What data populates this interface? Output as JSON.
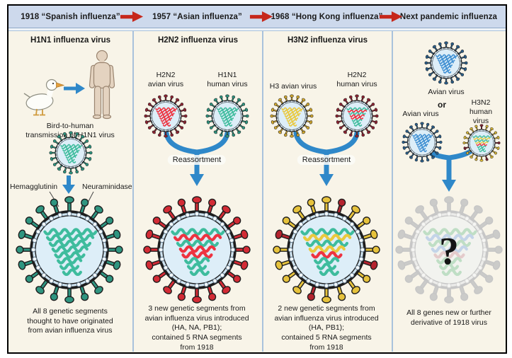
{
  "header": {
    "cells": [
      {
        "label": "1918 “Spanish influenza”"
      },
      {
        "label": "1957 “Asian influenza”"
      },
      {
        "label": "1968 “Hong Kong influenza”"
      },
      {
        "label": "Next pandemic influenza"
      }
    ],
    "arrow_color": "#c6271b"
  },
  "colors": {
    "header_bg": "#cdd9ec",
    "body_bg": "#f8f4e8",
    "flow_arrow": "#2f88c9",
    "teal": "#3ebc9d",
    "red": "#ee3340",
    "yellow": "#eac93e",
    "blue": "#3f8fd2"
  },
  "columns": [
    {
      "title": "H1N1 influenza virus",
      "figures": {
        "bird": "duck",
        "person": "human",
        "caption": "Bird-to-human\ntransmission of H1N1 virus"
      },
      "spike_labels": {
        "left": "Hemagglutinin",
        "right": "Neuraminidase"
      },
      "small_virus": {
        "name": "H1N1 virus",
        "spike_color": "#2f9580",
        "rna_segments": [
          "#3ebc9d",
          "#3ebc9d",
          "#3ebc9d",
          "#3ebc9d",
          "#3ebc9d",
          "#3ebc9d",
          "#3ebc9d",
          "#3ebc9d"
        ]
      },
      "big_virus": {
        "name": "1918 H1N1 pandemic virus",
        "spike_color": "#2f9580",
        "rna_segments": [
          "#3ebc9d",
          "#3ebc9d",
          "#3ebc9d",
          "#3ebc9d",
          "#3ebc9d",
          "#3ebc9d",
          "#3ebc9d",
          "#3ebc9d"
        ]
      },
      "caption": "All 8 genetic segments\nthought to have originated\nfrom avian influenza virus"
    },
    {
      "title": "H2N2 influenza virus",
      "left_virus_label": "H2N2\navian virus",
      "right_virus_label": "H1N1\nhuman virus",
      "reassortment_label": "Reassortment",
      "left_virus": {
        "name": "H2N2 avian virus",
        "spike_color": "#8f2433",
        "rna_segments": [
          "#ee3340",
          "#ee3340",
          "#ee3340",
          "#ee3340",
          "#ee3340",
          "#ee3340",
          "#ee3340",
          "#ee3340"
        ]
      },
      "right_virus": {
        "name": "H1N1 human virus",
        "spike_color": "#2f9580",
        "rna_segments": [
          "#3ebc9d",
          "#3ebc9d",
          "#3ebc9d",
          "#3ebc9d",
          "#3ebc9d",
          "#3ebc9d",
          "#3ebc9d",
          "#3ebc9d"
        ]
      },
      "big_virus": {
        "name": "1957 H2N2 pandemic virus",
        "spike_color": "#d32b35",
        "rna_segments": [
          "#3ebc9d",
          "#ee3340",
          "#3ebc9d",
          "#ee3340",
          "#ee3340",
          "#3ebc9d",
          "#3ebc9d",
          "#3ebc9d"
        ]
      },
      "caption": "3 new genetic segments from\navian influenza virus introduced\n(HA, NA, PB1);\ncontained 5 RNA segments\nfrom 1918"
    },
    {
      "title": "H3N2 influenza virus",
      "left_virus_label": "H3 avian virus",
      "right_virus_label": "H2N2\nhuman virus",
      "reassortment_label": "Reassortment",
      "left_virus": {
        "name": "H3 avian virus",
        "spike_color": "#d3a92f",
        "rna_segments": [
          "#eac93e",
          "#eac93e",
          "#eac93e",
          "#eac93e",
          "#eac93e",
          "#eac93e",
          "#eac93e",
          "#eac93e"
        ]
      },
      "right_virus": {
        "name": "H2N2 human virus",
        "spike_color": "#8f2433",
        "rna_segments": [
          "#3ebc9d",
          "#ee3340",
          "#3ebc9d",
          "#ee3340",
          "#ee3340",
          "#3ebc9d",
          "#3ebc9d",
          "#3ebc9d"
        ]
      },
      "big_virus": {
        "name": "1968 H3N2 pandemic virus",
        "spike_color": "#e6c23c",
        "accent_spike_color": "#b5242f",
        "accent_spike_indices": [
          1,
          6,
          11,
          16
        ],
        "rna_segments": [
          "#3ebc9d",
          "#eac93e",
          "#3ebc9d",
          "#eac93e",
          "#ee3340",
          "#3ebc9d",
          "#3ebc9d",
          "#3ebc9d"
        ]
      },
      "caption": "2 new genetic segments from\navian influenza virus introduced\n(HA, PB1);\ncontained 5 RNA segments\nfrom 1918"
    },
    {
      "top_virus_label": "Avian virus",
      "or_label": "or",
      "left_virus_label": "Avian virus",
      "right_virus_label": "H3N2\nhuman virus",
      "top_virus": {
        "name": "Avian virus",
        "spike_color": "#2c5f8a",
        "rna_segments": [
          "#3f8fd2",
          "#3f8fd2",
          "#3f8fd2",
          "#3f8fd2",
          "#3f8fd2",
          "#3f8fd2",
          "#3f8fd2",
          "#3f8fd2"
        ]
      },
      "left_virus": {
        "name": "Avian virus",
        "spike_color": "#2c5f8a",
        "rna_segments": [
          "#3f8fd2",
          "#3f8fd2",
          "#3f8fd2",
          "#3f8fd2",
          "#3f8fd2",
          "#3f8fd2",
          "#3f8fd2",
          "#3f8fd2"
        ]
      },
      "right_virus": {
        "name": "H3N2 human virus",
        "spike_color": "#d8b637",
        "accent_spike_color": "#7d2433",
        "accent_spike_indices": [
          0,
          5,
          9,
          14
        ],
        "rna_segments": [
          "#3ebc9d",
          "#eac93e",
          "#3ebc9d",
          "#eac93e",
          "#ee3340",
          "#3ebc9d",
          "#3ebc9d",
          "#3ebc9d"
        ]
      },
      "big_virus": {
        "name": "Unknown next pandemic virus",
        "faded": true,
        "spike_color": "#cbcbc9",
        "question": "?",
        "rna_segments": [
          "#bfdec5",
          "#c3d4e8",
          "#bfdec5",
          "#c3d4e8",
          "#e4cbcb",
          "#bfdec5",
          "#bfdec5",
          "#bfdec5"
        ]
      },
      "caption": "All 8 genes new or further\nderivative of 1918 virus"
    }
  ]
}
